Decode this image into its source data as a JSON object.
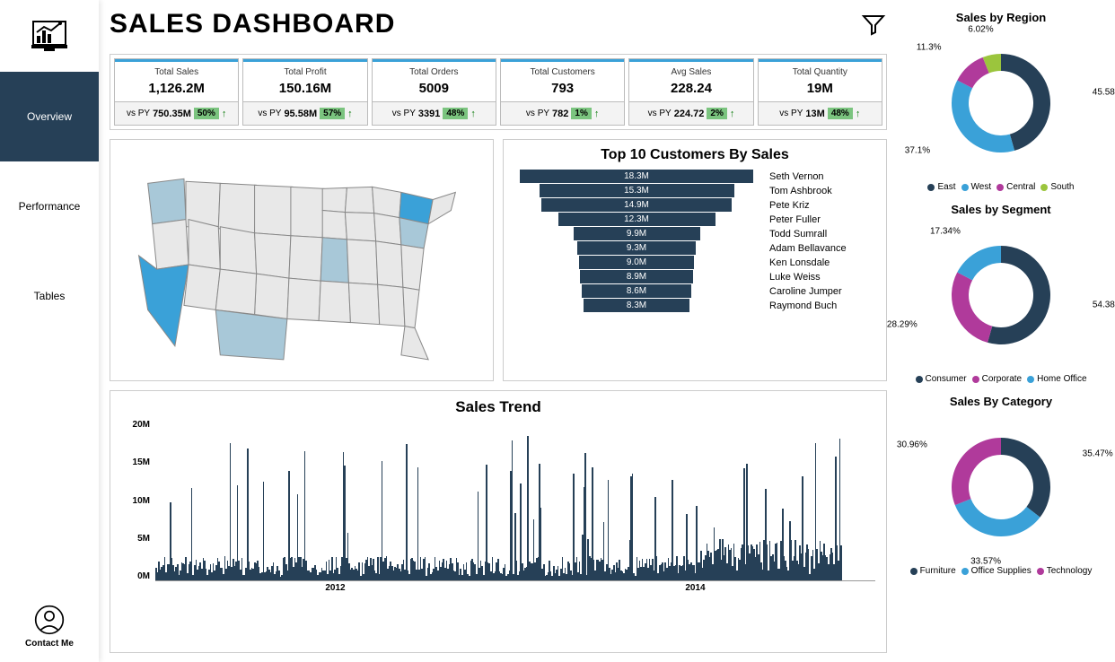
{
  "title": "SALES DASHBOARD",
  "nav": {
    "overview": "Overview",
    "performance": "Performance",
    "tables": "Tables",
    "contact": "Contact Me"
  },
  "colors": {
    "primary": "#264057",
    "accent": "#3aa1d8",
    "green": "#7bc47f",
    "region_east": "#264057",
    "region_west": "#3aa1d8",
    "region_central": "#b03a9b",
    "region_south": "#9bc53d",
    "seg_consumer": "#264057",
    "seg_corporate": "#b03a9b",
    "seg_home": "#3aa1d8",
    "cat_furniture": "#264057",
    "cat_office": "#3aa1d8",
    "cat_tech": "#b03a9b"
  },
  "kpis": [
    {
      "label": "Total Sales",
      "value": "1,126.2M",
      "prev": "750.35M",
      "pct": "50%"
    },
    {
      "label": "Total Profit",
      "value": "150.16M",
      "prev": "95.58M",
      "pct": "57%"
    },
    {
      "label": "Total Orders",
      "value": "5009",
      "prev": "3391",
      "pct": "48%"
    },
    {
      "label": "Total Customers",
      "value": "793",
      "prev": "782",
      "pct": "1%"
    },
    {
      "label": "Avg Sales",
      "value": "228.24",
      "prev": "224.72",
      "pct": "2%"
    },
    {
      "label": "Total Quantity",
      "value": "19M",
      "prev": "13M",
      "pct": "48%"
    }
  ],
  "vspy": "vs PY",
  "top_customers": {
    "title": "Top 10 Customers By Sales",
    "max": 18.3,
    "rows": [
      {
        "name": "Seth Vernon",
        "val": "18.3M",
        "num": 18.3
      },
      {
        "name": "Tom Ashbrook",
        "val": "15.3M",
        "num": 15.3
      },
      {
        "name": "Pete Kriz",
        "val": "14.9M",
        "num": 14.9
      },
      {
        "name": "Peter Fuller",
        "val": "12.3M",
        "num": 12.3
      },
      {
        "name": "Todd Sumrall",
        "val": "9.9M",
        "num": 9.9
      },
      {
        "name": "Adam Bellavance",
        "val": "9.3M",
        "num": 9.3
      },
      {
        "name": "Ken Lonsdale",
        "val": "9.0M",
        "num": 9.0
      },
      {
        "name": "Luke Weiss",
        "val": "8.9M",
        "num": 8.9
      },
      {
        "name": "Caroline Jumper",
        "val": "8.6M",
        "num": 8.6
      },
      {
        "name": "Raymond Buch",
        "val": "8.3M",
        "num": 8.3
      }
    ]
  },
  "trend": {
    "title": "Sales Trend",
    "y_ticks": [
      "20M",
      "15M",
      "10M",
      "5M",
      "0M"
    ],
    "x_ticks": [
      "2012",
      "2014"
    ],
    "ymax": 20
  },
  "region_chart": {
    "title": "Sales by Region",
    "slices": [
      {
        "label": "East",
        "pct": 45.58,
        "color": "#264057"
      },
      {
        "label": "West",
        "pct": 37.1,
        "color": "#3aa1d8"
      },
      {
        "label": "Central",
        "pct": 11.3,
        "color": "#b03a9b"
      },
      {
        "label": "South",
        "pct": 6.02,
        "color": "#9bc53d"
      }
    ]
  },
  "segment_chart": {
    "title": "Sales by Segment",
    "slices": [
      {
        "label": "Consumer",
        "pct": 54.38,
        "color": "#264057"
      },
      {
        "label": "Corporate",
        "pct": 28.29,
        "color": "#b03a9b"
      },
      {
        "label": "Home Office",
        "pct": 17.34,
        "color": "#3aa1d8"
      }
    ]
  },
  "category_chart": {
    "title": "Sales By Category",
    "slices": [
      {
        "label": "Furniture",
        "pct": 35.47,
        "color": "#264057"
      },
      {
        "label": "Office Supplies",
        "pct": 33.57,
        "color": "#3aa1d8"
      },
      {
        "label": "Technology",
        "pct": 30.96,
        "color": "#b03a9b"
      }
    ]
  }
}
